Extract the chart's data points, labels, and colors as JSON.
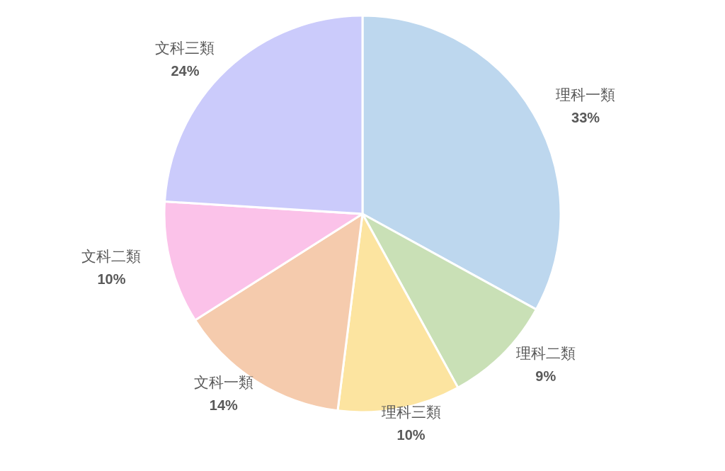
{
  "chart_data": {
    "type": "pie",
    "categories": [
      "理科一類",
      "理科二類",
      "理科三類",
      "文科一類",
      "文科二類",
      "文科三類"
    ],
    "values": [
      33,
      9,
      10,
      14,
      10,
      24
    ],
    "value_labels": [
      "33%",
      "9%",
      "10%",
      "14%",
      "10%",
      "24%"
    ],
    "colors": [
      "#bdd7ee",
      "#c9e0b6",
      "#fce4a0",
      "#f5cbad",
      "#fbc2e9",
      "#cbcbfb"
    ]
  }
}
